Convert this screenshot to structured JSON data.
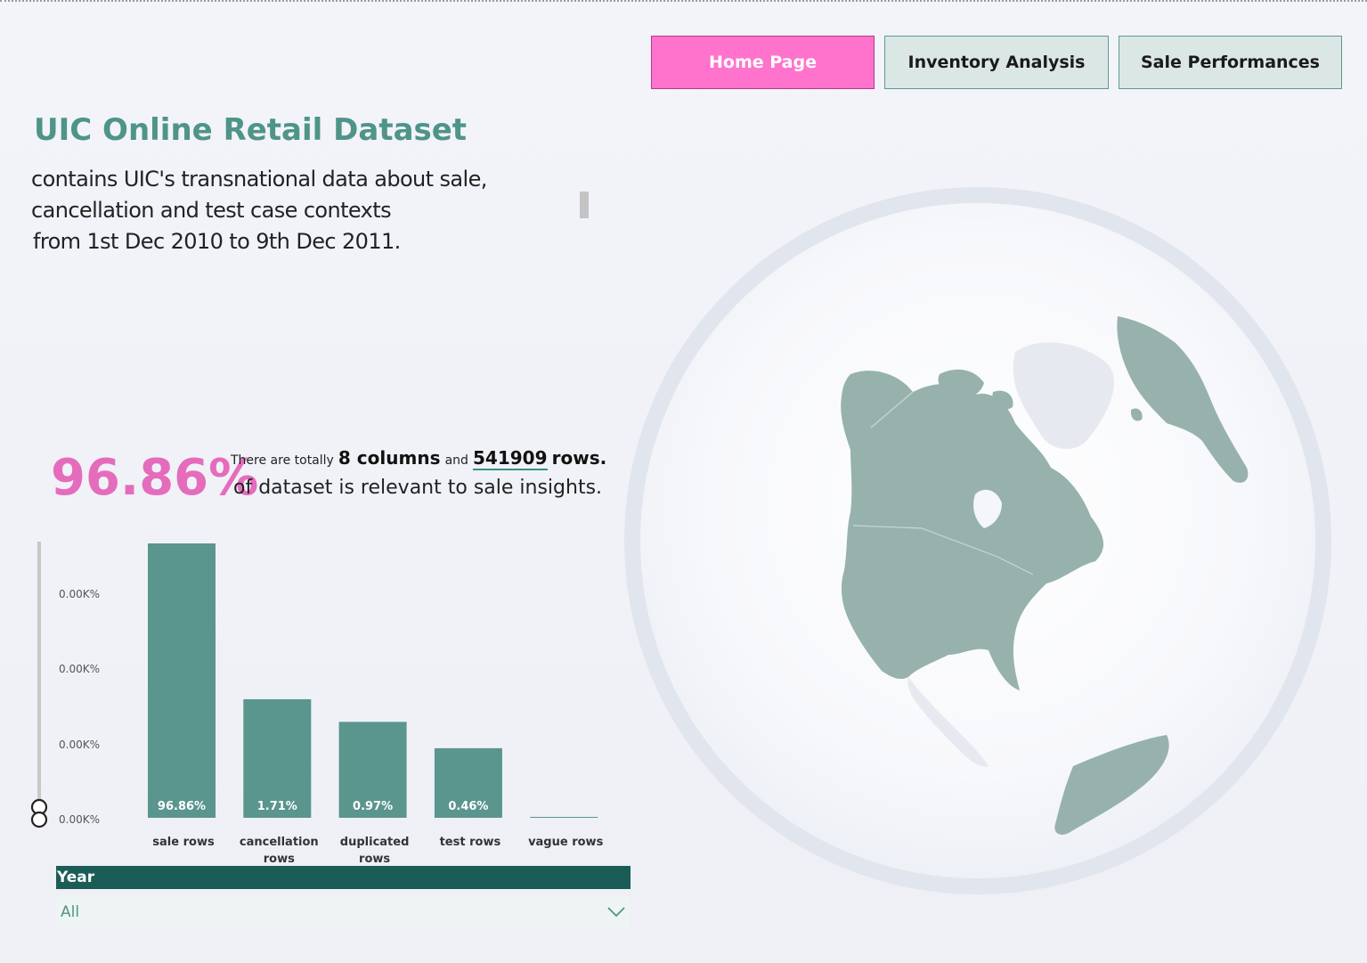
{
  "nav": {
    "home": "Home Page",
    "inventory": "Inventory Analysis",
    "sales": "Sale Performances"
  },
  "header": {
    "title": "UIC Online Retail Dataset",
    "desc_line1": "contains UIC's transnational data about sale,",
    "desc_line2": "cancellation and test case contexts",
    "desc_line3": "from 1st Dec 2010 to 9th Dec 2011."
  },
  "stats": {
    "percent": "96.86%",
    "line1_a": "There are totally",
    "columns": "8 columns",
    "line1_and": "and",
    "rows_count": "541909",
    "rows_word": "rows.",
    "line2": "of dataset is relevant to sale insights."
  },
  "colors": {
    "accent_pink": "#e56cbc",
    "teal": "#5a958e",
    "dark_teal": "#1b5c57",
    "map_land": "#97b2ad"
  },
  "chart_data": {
    "type": "bar",
    "categories": [
      "sale rows",
      "cancellation rows",
      "duplicated rows",
      "test rows",
      "vague rows"
    ],
    "category_lines": [
      [
        "sale rows"
      ],
      [
        "cancellation",
        "rows"
      ],
      [
        "duplicated",
        "rows"
      ],
      [
        "test rows"
      ],
      [
        "vague rows"
      ]
    ],
    "values": [
      96.86,
      1.71,
      0.97,
      0.46,
      0.0
    ],
    "data_labels": [
      "96.86%",
      "1.71%",
      "0.97%",
      "0.46%",
      ""
    ],
    "y_ticks": [
      "0.00K%",
      "0.00K%",
      "0.00K%",
      "0.00K%"
    ],
    "xlabel": "",
    "ylabel": "",
    "title": "",
    "grid": false,
    "scale_note": "y axis is a non-linear (log-like) scale"
  },
  "filter": {
    "label": "Year",
    "value": "All"
  },
  "icons": {
    "globe": "globe-map-icon",
    "chevron": "chevron-down-icon",
    "slider": "range-slider-handle-icon"
  }
}
